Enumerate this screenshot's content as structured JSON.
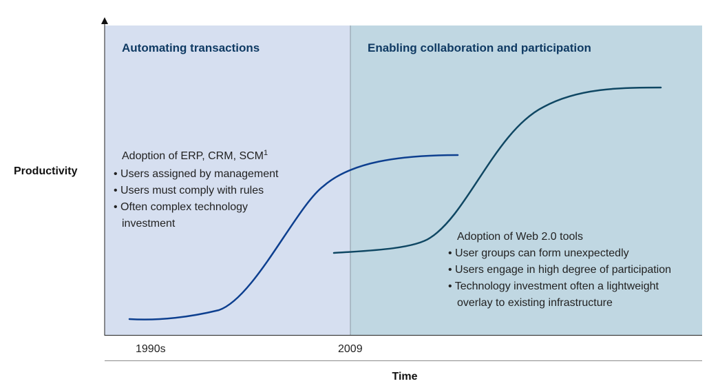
{
  "colors": {
    "left_panel": "#d6dff0",
    "right_panel": "#c0d7e2",
    "first_curve": "#0d3f8f",
    "second_curve": "#0f4763",
    "title_text": "#0f3a63",
    "divider": "#8a9aa3"
  },
  "panels": {
    "left_title": "Automating transactions",
    "right_title": "Enabling collaboration and participation"
  },
  "first_wave": {
    "heading": "Adoption of ERP, CRM, SCM",
    "footnote_mark": "1",
    "bullets": [
      "• Users assigned by management",
      "• Users must comply with rules",
      "• Often complex technology",
      "investment"
    ]
  },
  "second_wave": {
    "heading": "Adoption of Web 2.0 tools",
    "bullets": [
      "• User groups can form unexpectedly",
      "• Users engage in high degree of participation",
      "• Technology investment often a lightweight",
      "overlay to existing infrastructure"
    ]
  },
  "axes": {
    "y_label": "Productivity",
    "x_label": "Time",
    "x_ticks": [
      "1990s",
      "2009"
    ]
  }
}
